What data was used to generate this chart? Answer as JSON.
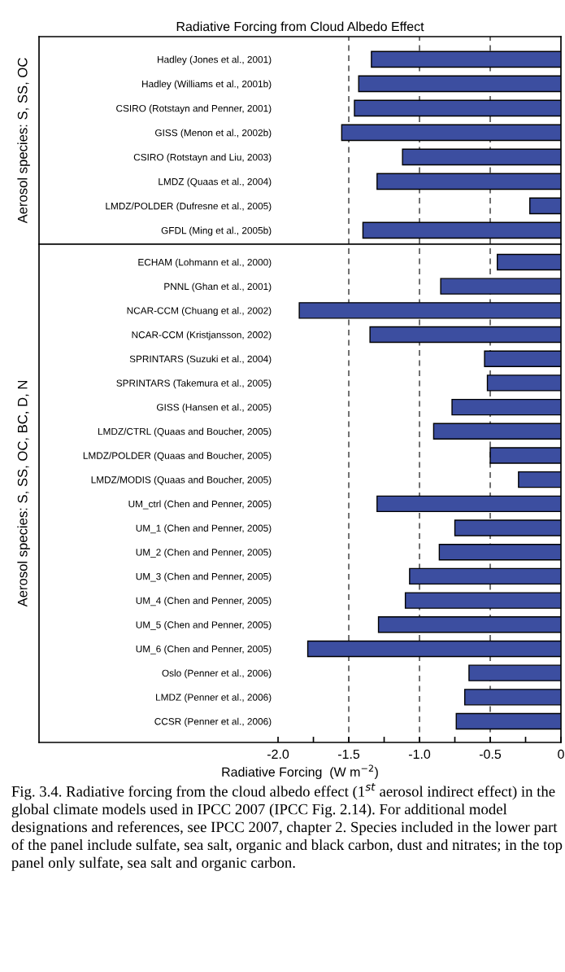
{
  "chart_data": [
    {
      "type": "bar",
      "orientation": "horizontal",
      "title": "Radiative Forcing from Cloud Albedo Effect",
      "ylabel": "Aerosol species: S, SS, OC",
      "categories": [
        "Hadley (Jones et al., 2001)",
        "Hadley (Williams et al., 2001b)",
        "CSIRO (Rotstayn and Penner, 2001)",
        "GISS (Menon et al., 2002b)",
        "CSIRO (Rotstayn and Liu, 2003)",
        "LMDZ (Quaas et al., 2004)",
        "LMDZ/POLDER (Dufresne et al., 2005)",
        "GFDL (Ming et al., 2005b)"
      ],
      "values": [
        -1.34,
        -1.43,
        -1.46,
        -1.55,
        -1.12,
        -1.3,
        -0.22,
        -1.4
      ],
      "color": "#3c4ea0",
      "xlim": [
        -3.69,
        0
      ],
      "tick_labels": "y",
      "ref_lines": [
        {
          "axis": "x",
          "value": -1.5,
          "line_style": "dashed"
        },
        {
          "axis": "x",
          "value": -1.0,
          "line_style": "dashed"
        },
        {
          "axis": "x",
          "value": -0.5,
          "line_style": "dashed"
        }
      ]
    },
    {
      "type": "bar",
      "orientation": "horizontal",
      "ylabel": "Aerosol species: S, SS, OC, BC, D, N",
      "xlabel": "Radiative Forcing  (W m$^{−2}$)",
      "categories": [
        "ECHAM (Lohmann et al., 2000)",
        "PNNL (Ghan et al., 2001)",
        "NCAR-CCM (Chuang et al., 2002)",
        "NCAR-CCM (Kristjansson, 2002)",
        "SPRINTARS (Suzuki et al., 2004)",
        "SPRINTARS (Takemura et al., 2005)",
        "GISS (Hansen et al., 2005)",
        "LMDZ/CTRL (Quaas and Boucher, 2005)",
        "LMDZ/POLDER (Quaas and Boucher, 2005)",
        "LMDZ/MODIS (Quaas and Boucher, 2005)",
        "UM_ctrl (Chen and Penner, 2005)",
        "UM_1 (Chen and Penner, 2005)",
        "UM_2 (Chen and Penner, 2005)",
        "UM_3 (Chen and Penner, 2005)",
        "UM_4 (Chen and Penner, 2005)",
        "UM_5 (Chen and Penner, 2005)",
        "UM_6 (Chen and Penner, 2005)",
        "Oslo (Penner et al., 2006)",
        "LMDZ (Penner et al., 2006)",
        "CCSR (Penner et al., 2006)"
      ],
      "values": [
        -0.45,
        -0.85,
        -1.85,
        -1.35,
        -0.54,
        -0.52,
        -0.77,
        -0.9,
        -0.5,
        -0.3,
        -1.3,
        -0.75,
        -0.86,
        -1.07,
        -1.1,
        -1.29,
        -1.79,
        -0.65,
        -0.68,
        -0.74
      ],
      "color": "#3c4ea0",
      "xlim": [
        -3.69,
        0
      ],
      "xticks": [
        {
          "value": -2.0,
          "label": "-2.0"
        },
        {
          "value": -1.75,
          "label": null
        },
        {
          "value": -1.5,
          "label": "-1.5"
        },
        {
          "value": -1.25,
          "label": null
        },
        {
          "value": -1.0,
          "label": "-1.0"
        },
        {
          "value": -0.75,
          "label": null
        },
        {
          "value": -0.5,
          "label": "-0.5"
        },
        {
          "value": -0.25,
          "label": null
        },
        {
          "value": 0,
          "label": "0"
        }
      ],
      "ref_lines": [
        {
          "axis": "x",
          "value": -1.5,
          "line_style": "dashed"
        },
        {
          "axis": "x",
          "value": -1.0,
          "line_style": "dashed"
        },
        {
          "axis": "x",
          "value": -0.5,
          "line_style": "dashed"
        }
      ],
      "annotations": [
        "Fig. 3.4. Radiative forcing from the cloud albedo effect (1$^{st}$ aerosol indirect effect) in the global climate models used in IPCC 2007 (IPCC Fig. 2.14). For additional model designations and references, see IPCC 2007, chapter 2. Species included in the lower part of the panel include sulfate, sea salt, organic and black carbon, dust and nitrates; in the top panel only sulfate, sea salt and organic carbon."
      ]
    }
  ]
}
